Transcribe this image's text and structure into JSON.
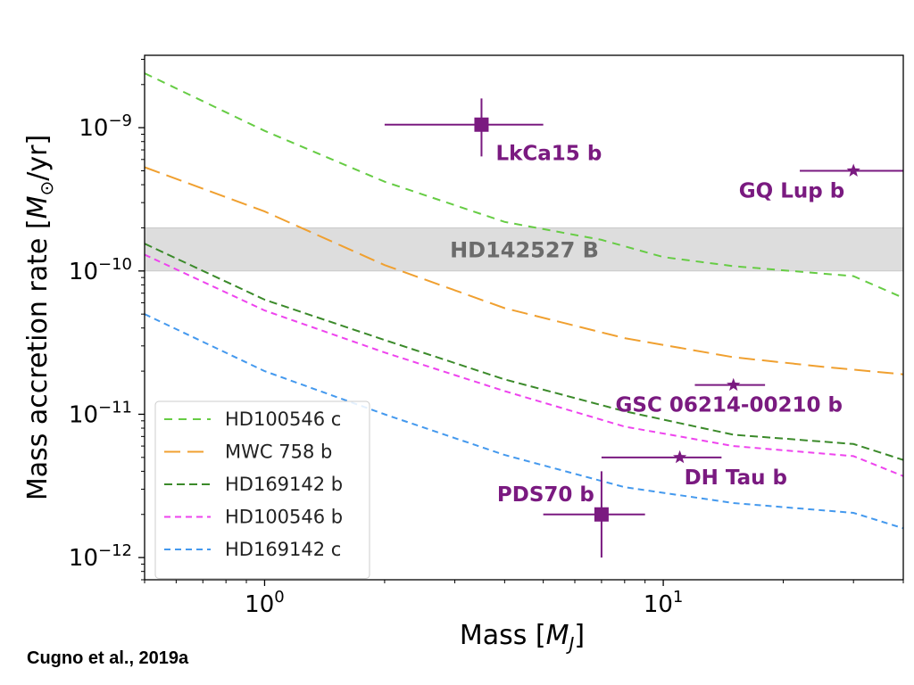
{
  "credit": "Cugno et al., 2019a",
  "chart_data": {
    "type": "line",
    "xlabel": "Mass [M_J]",
    "ylabel": "Mass accretion rate [M_⊙/yr]",
    "xscale": "log",
    "yscale": "log",
    "xlim": [
      0.5,
      40
    ],
    "ylim": [
      7e-13,
      3.2e-09
    ],
    "x_ticks": [
      {
        "value": 1,
        "base": "10",
        "exp": "0"
      },
      {
        "value": 10,
        "base": "10",
        "exp": "1"
      }
    ],
    "y_ticks": [
      {
        "value": 1e-09,
        "base": "10",
        "exp": "−9"
      },
      {
        "value": 1e-10,
        "base": "10",
        "exp": "−10"
      },
      {
        "value": 1e-11,
        "base": "10",
        "exp": "−11"
      },
      {
        "value": 1e-12,
        "base": "10",
        "exp": "−12"
      }
    ],
    "legend_position": "lower-left",
    "band": {
      "label": "HD142527 B",
      "y_low": 1e-10,
      "y_high": 2e-10,
      "color": "#dddddd",
      "text_color": "#6b6b6b"
    },
    "series": [
      {
        "name": "HD100546 c",
        "color": "#66cc44",
        "dash": "9,7",
        "points": [
          [
            0.5,
            2.4e-09
          ],
          [
            1,
            9.5e-10
          ],
          [
            2,
            4.2e-10
          ],
          [
            4,
            2.2e-10
          ],
          [
            7,
            1.65e-10
          ],
          [
            10,
            1.25e-10
          ],
          [
            15,
            1.08e-10
          ],
          [
            30,
            9.2e-11
          ],
          [
            40,
            6.5e-11
          ]
        ]
      },
      {
        "name": "MWC 758 b",
        "color": "#f0a030",
        "dash": "18,8",
        "points": [
          [
            0.5,
            5.3e-10
          ],
          [
            1,
            2.6e-10
          ],
          [
            2,
            1.1e-10
          ],
          [
            4,
            5.5e-11
          ],
          [
            8,
            3.4e-11
          ],
          [
            15,
            2.5e-11
          ],
          [
            25,
            2.15e-11
          ],
          [
            40,
            1.9e-11
          ]
        ]
      },
      {
        "name": "HD169142 b",
        "color": "#3b8a2a",
        "dash": "9,5",
        "points": [
          [
            0.5,
            1.55e-10
          ],
          [
            1,
            6.3e-11
          ],
          [
            2,
            3.3e-11
          ],
          [
            4,
            1.75e-11
          ],
          [
            8,
            1.05e-11
          ],
          [
            15,
            7.2e-12
          ],
          [
            30,
            6.2e-12
          ],
          [
            40,
            4.8e-12
          ]
        ]
      },
      {
        "name": "HD100546 b",
        "color": "#ee44ee",
        "dash": "7,5",
        "points": [
          [
            0.5,
            1.3e-10
          ],
          [
            1,
            5.3e-11
          ],
          [
            2,
            2.7e-11
          ],
          [
            4,
            1.45e-11
          ],
          [
            8,
            8.2e-12
          ],
          [
            15,
            6e-12
          ],
          [
            30,
            5.1e-12
          ],
          [
            40,
            3.7e-12
          ]
        ]
      },
      {
        "name": "HD169142 c",
        "color": "#4499ee",
        "dash": "7,5",
        "points": [
          [
            0.5,
            5e-11
          ],
          [
            1,
            2e-11
          ],
          [
            2,
            1e-11
          ],
          [
            4,
            5.2e-12
          ],
          [
            8,
            3.1e-12
          ],
          [
            15,
            2.4e-12
          ],
          [
            30,
            2.05e-12
          ],
          [
            40,
            1.6e-12
          ]
        ]
      }
    ],
    "objects": [
      {
        "name": "LkCa15 b",
        "marker": "square",
        "x": 3.5,
        "y": 1.05e-09,
        "xerr": [
          2,
          5
        ],
        "yerr": [
          6.3e-10,
          1.6e-09
        ],
        "label_anchor": "below-right"
      },
      {
        "name": "GQ Lup b",
        "marker": "star",
        "x": 30,
        "y": 5e-10,
        "xerr": [
          22,
          40
        ],
        "yerr": null,
        "label_anchor": "below-left"
      },
      {
        "name": "GSC 06214-00210 b",
        "marker": "star",
        "x": 15,
        "y": 1.6e-11,
        "xerr": [
          12,
          18
        ],
        "yerr": null,
        "label_anchor": "below"
      },
      {
        "name": "DH Tau b",
        "marker": "star",
        "x": 11,
        "y": 5e-12,
        "xerr": [
          7,
          14
        ],
        "yerr": null,
        "label_anchor": "below-right"
      },
      {
        "name": "PDS70 b",
        "marker": "square",
        "x": 7,
        "y": 2e-12,
        "xerr": [
          5,
          9
        ],
        "yerr": [
          1e-12,
          4e-12
        ],
        "label_anchor": "above-left"
      }
    ],
    "object_color": "#7a1a80"
  }
}
